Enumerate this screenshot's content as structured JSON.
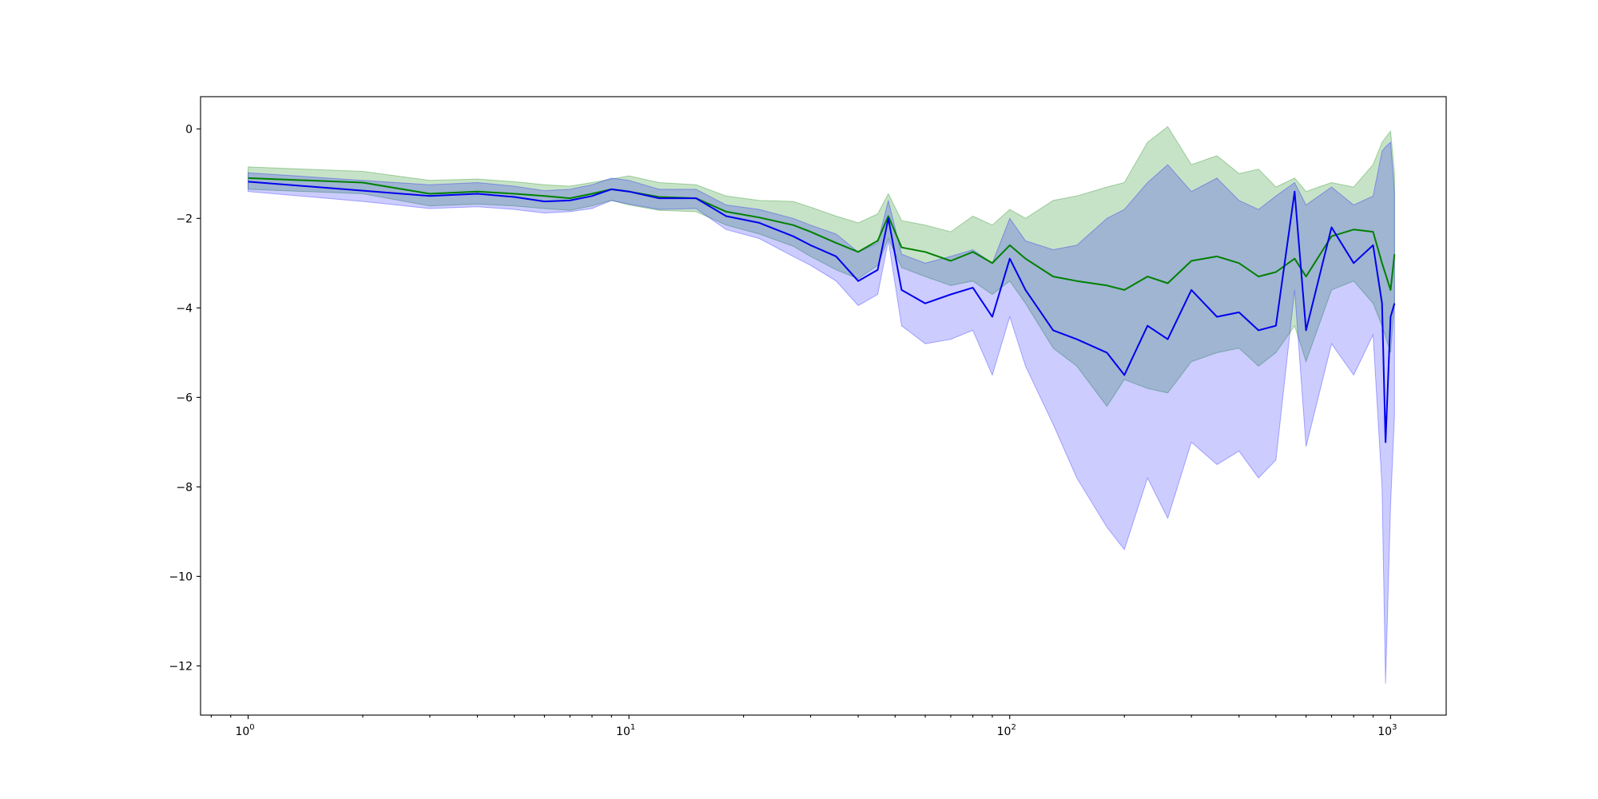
{
  "chart_data": {
    "type": "line",
    "title": "",
    "xlabel": "",
    "ylabel": "",
    "xscale": "log",
    "xlim": [
      0.75,
      1400
    ],
    "ylim": [
      -13.1,
      0.72
    ],
    "grid": false,
    "legend": "none",
    "x_ticks": [
      {
        "base": "10",
        "exp": "0",
        "value": 1
      },
      {
        "base": "10",
        "exp": "1",
        "value": 10
      },
      {
        "base": "10",
        "exp": "2",
        "value": 100
      },
      {
        "base": "10",
        "exp": "3",
        "value": 1000
      }
    ],
    "y_ticks": [
      {
        "label": "0",
        "value": 0
      },
      {
        "label": "−2",
        "value": -2
      },
      {
        "label": "−4",
        "value": -4
      },
      {
        "label": "−6",
        "value": -6
      },
      {
        "label": "−8",
        "value": -8
      },
      {
        "label": "−10",
        "value": -10
      },
      {
        "label": "−12",
        "value": -12
      }
    ],
    "series": [
      {
        "color": "#008000",
        "band_color": "#008000",
        "band_opacity": 0.22,
        "x": [
          1,
          2,
          3,
          4,
          5,
          6,
          7,
          8,
          9,
          10,
          12,
          15,
          18,
          22,
          27,
          30,
          35,
          40,
          45,
          48,
          52,
          60,
          70,
          80,
          90,
          100,
          110,
          130,
          150,
          180,
          200,
          230,
          260,
          300,
          350,
          400,
          450,
          500,
          560,
          600,
          700,
          800,
          900,
          950,
          1000,
          1024
        ],
        "y": [
          -1.1,
          -1.2,
          -1.45,
          -1.4,
          -1.45,
          -1.5,
          -1.55,
          -1.45,
          -1.35,
          -1.4,
          -1.52,
          -1.55,
          -1.85,
          -1.98,
          -2.15,
          -2.3,
          -2.55,
          -2.75,
          -2.5,
          -1.95,
          -2.65,
          -2.75,
          -2.95,
          -2.75,
          -3.0,
          -2.6,
          -2.9,
          -3.3,
          -3.4,
          -3.5,
          -3.6,
          -3.3,
          -3.45,
          -2.95,
          -2.85,
          -3.0,
          -3.3,
          -3.2,
          -2.9,
          -3.3,
          -2.4,
          -2.25,
          -2.3,
          -3.0,
          -3.6,
          -2.8
        ],
        "upper": [
          -0.85,
          -0.95,
          -1.15,
          -1.12,
          -1.18,
          -1.25,
          -1.28,
          -1.2,
          -1.12,
          -1.05,
          -1.2,
          -1.25,
          -1.5,
          -1.6,
          -1.62,
          -1.75,
          -1.95,
          -2.1,
          -1.9,
          -1.45,
          -2.05,
          -2.15,
          -2.3,
          -1.95,
          -2.15,
          -1.8,
          -2.0,
          -1.6,
          -1.5,
          -1.3,
          -1.2,
          -0.3,
          0.05,
          -0.8,
          -0.6,
          -1.0,
          -0.9,
          -1.3,
          -1.1,
          -1.4,
          -1.2,
          -1.3,
          -0.8,
          -0.3,
          -0.05,
          -1.0
        ],
        "lower": [
          -1.35,
          -1.45,
          -1.72,
          -1.68,
          -1.72,
          -1.78,
          -1.82,
          -1.72,
          -1.6,
          -1.7,
          -1.82,
          -1.85,
          -2.15,
          -2.35,
          -2.62,
          -2.85,
          -3.15,
          -3.35,
          -3.05,
          -2.45,
          -3.1,
          -3.3,
          -3.5,
          -3.4,
          -3.7,
          -3.4,
          -3.9,
          -4.9,
          -5.3,
          -6.2,
          -5.6,
          -5.8,
          -5.9,
          -5.2,
          -5.0,
          -4.9,
          -5.3,
          -5.0,
          -4.4,
          -5.2,
          -3.6,
          -3.4,
          -3.9,
          -4.4,
          -5.0,
          -3.9
        ]
      },
      {
        "color": "#0000ee",
        "band_color": "#0000ff",
        "band_opacity": 0.2,
        "x": [
          1,
          2,
          3,
          4,
          5,
          6,
          7,
          8,
          9,
          10,
          12,
          15,
          18,
          22,
          27,
          30,
          35,
          40,
          45,
          48,
          52,
          60,
          70,
          80,
          90,
          100,
          110,
          130,
          150,
          180,
          200,
          230,
          260,
          300,
          350,
          400,
          450,
          500,
          560,
          600,
          700,
          800,
          900,
          950,
          970,
          1000,
          1024
        ],
        "y": [
          -1.18,
          -1.38,
          -1.5,
          -1.45,
          -1.52,
          -1.62,
          -1.6,
          -1.5,
          -1.35,
          -1.4,
          -1.55,
          -1.55,
          -1.95,
          -2.1,
          -2.4,
          -2.6,
          -2.85,
          -3.4,
          -3.15,
          -2.0,
          -3.6,
          -3.9,
          -3.7,
          -3.55,
          -4.2,
          -2.9,
          -3.6,
          -4.5,
          -4.7,
          -5.0,
          -5.5,
          -4.4,
          -4.7,
          -3.6,
          -4.2,
          -4.1,
          -4.5,
          -4.4,
          -1.4,
          -4.5,
          -2.2,
          -3.0,
          -2.6,
          -3.9,
          -7.0,
          -4.2,
          -3.9
        ],
        "upper": [
          -0.98,
          -1.15,
          -1.25,
          -1.2,
          -1.28,
          -1.38,
          -1.35,
          -1.25,
          -1.1,
          -1.15,
          -1.35,
          -1.35,
          -1.7,
          -1.8,
          -2.0,
          -2.15,
          -2.35,
          -2.75,
          -2.55,
          -1.6,
          -2.8,
          -3.0,
          -2.85,
          -2.7,
          -3.0,
          -2.0,
          -2.5,
          -2.7,
          -2.6,
          -2.0,
          -1.8,
          -1.2,
          -0.8,
          -1.4,
          -1.1,
          -1.6,
          -1.8,
          -1.5,
          -1.2,
          -1.7,
          -1.3,
          -1.7,
          -1.5,
          -0.5,
          -0.4,
          -0.3,
          -1.4
        ],
        "lower": [
          -1.4,
          -1.62,
          -1.78,
          -1.74,
          -1.8,
          -1.88,
          -1.85,
          -1.78,
          -1.6,
          -1.68,
          -1.8,
          -1.78,
          -2.25,
          -2.45,
          -2.85,
          -3.05,
          -3.4,
          -3.95,
          -3.7,
          -2.5,
          -4.4,
          -4.8,
          -4.7,
          -4.5,
          -5.5,
          -4.2,
          -5.3,
          -6.6,
          -7.8,
          -8.9,
          -9.4,
          -7.8,
          -8.7,
          -7.0,
          -7.5,
          -7.2,
          -7.8,
          -7.4,
          -3.6,
          -7.1,
          -4.8,
          -5.5,
          -4.6,
          -8.0,
          -12.4,
          -8.4,
          -6.4
        ]
      }
    ]
  }
}
